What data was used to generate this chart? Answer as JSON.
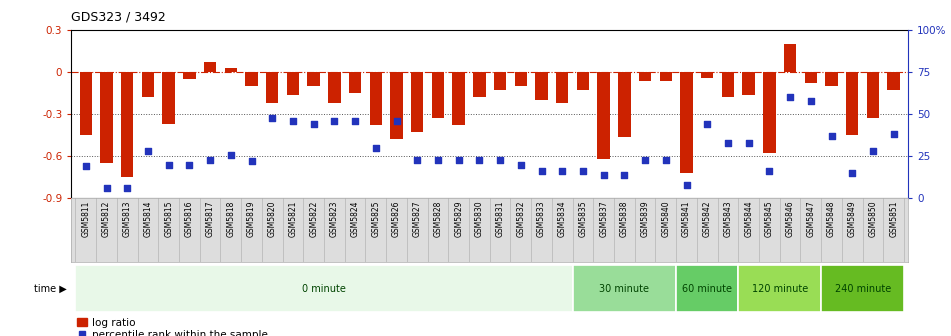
{
  "title": "GDS323 / 3492",
  "samples": [
    "GSM5811",
    "GSM5812",
    "GSM5813",
    "GSM5814",
    "GSM5815",
    "GSM5816",
    "GSM5817",
    "GSM5818",
    "GSM5819",
    "GSM5820",
    "GSM5821",
    "GSM5822",
    "GSM5823",
    "GSM5824",
    "GSM5825",
    "GSM5826",
    "GSM5827",
    "GSM5828",
    "GSM5829",
    "GSM5830",
    "GSM5831",
    "GSM5832",
    "GSM5833",
    "GSM5834",
    "GSM5835",
    "GSM5837",
    "GSM5838",
    "GSM5839",
    "GSM5840",
    "GSM5841",
    "GSM5842",
    "GSM5843",
    "GSM5844",
    "GSM5845",
    "GSM5846",
    "GSM5847",
    "GSM5848",
    "GSM5849",
    "GSM5850",
    "GSM5851"
  ],
  "log_ratio": [
    -0.45,
    -0.65,
    -0.75,
    -0.18,
    -0.37,
    -0.05,
    0.07,
    0.03,
    -0.1,
    -0.22,
    -0.16,
    -0.1,
    -0.22,
    -0.15,
    -0.38,
    -0.48,
    -0.43,
    -0.33,
    -0.38,
    -0.18,
    -0.13,
    -0.1,
    -0.2,
    -0.22,
    -0.13,
    -0.62,
    -0.46,
    -0.06,
    -0.06,
    -0.72,
    -0.04,
    -0.18,
    -0.16,
    -0.58,
    0.2,
    -0.08,
    -0.1,
    -0.45,
    -0.33,
    -0.13
  ],
  "percentile": [
    19,
    6,
    6,
    28,
    20,
    20,
    23,
    26,
    22,
    48,
    46,
    44,
    46,
    46,
    30,
    46,
    23,
    23,
    23,
    23,
    23,
    20,
    16,
    16,
    16,
    14,
    14,
    23,
    23,
    8,
    44,
    33,
    33,
    16,
    60,
    58,
    37,
    15,
    28,
    38
  ],
  "ylim_left": [
    -0.9,
    0.3
  ],
  "ylim_right": [
    0,
    100
  ],
  "yticks_left": [
    0.3,
    0.0,
    -0.3,
    -0.6,
    -0.9
  ],
  "yticks_right": [
    100,
    75,
    50,
    25,
    0
  ],
  "ytick_labels_right": [
    "100%",
    "75",
    "50",
    "25",
    "0"
  ],
  "bar_color": "#CC2200",
  "square_color": "#2233BB",
  "time_groups": [
    {
      "label": "0 minute",
      "start": 0,
      "end": 24,
      "color": "#E8F8E8"
    },
    {
      "label": "30 minute",
      "start": 24,
      "end": 29,
      "color": "#99DD99"
    },
    {
      "label": "60 minute",
      "start": 29,
      "end": 32,
      "color": "#66CC66"
    },
    {
      "label": "120 minute",
      "start": 32,
      "end": 36,
      "color": "#99DD55"
    },
    {
      "label": "240 minute",
      "start": 36,
      "end": 40,
      "color": "#66BB22"
    }
  ],
  "time_label_color": "#004400",
  "dotted_line_color": "#555555",
  "zero_line_color": "#CC2200",
  "bg_plot": "#FFFFFF",
  "label_bg": "#DDDDDD"
}
